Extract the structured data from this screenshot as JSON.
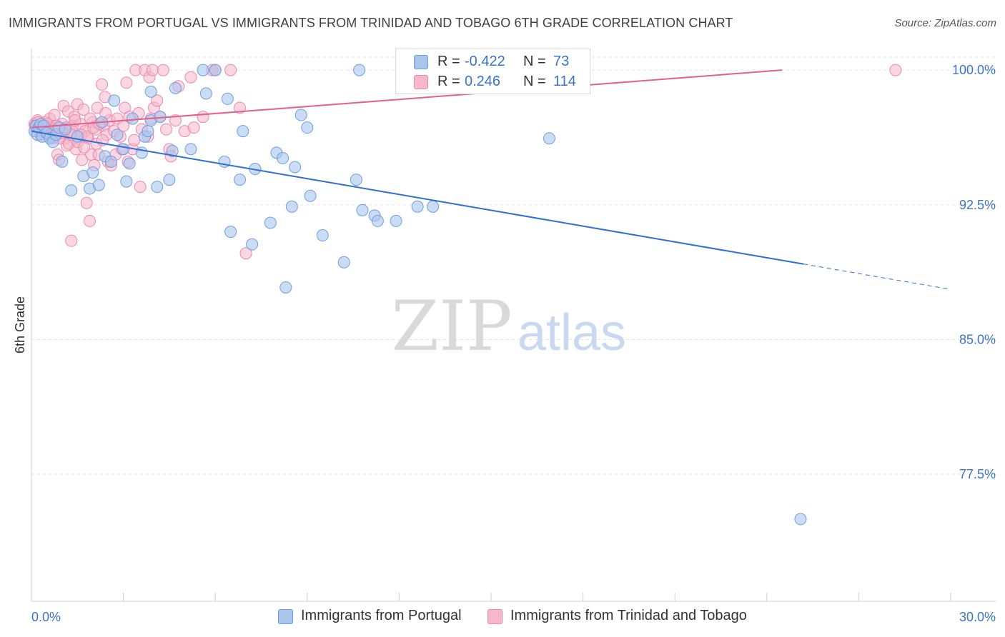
{
  "title": "IMMIGRANTS FROM PORTUGAL VS IMMIGRANTS FROM TRINIDAD AND TOBAGO 6TH GRADE CORRELATION CHART",
  "source": "Source: ZipAtlas.com",
  "watermark": {
    "zip": "ZIP",
    "atlas": "atlas"
  },
  "colors": {
    "blue_fill": "#a9c6ef",
    "blue_stroke": "#6f9de0",
    "blue_line": "#2f6fd1",
    "pink_fill": "#f6b6cb",
    "pink_stroke": "#e98aab",
    "pink_line": "#e2608b",
    "axis_label": "#3a74c9",
    "grid": "#e3e3e3"
  },
  "legend": {
    "rows": [
      {
        "r_label": "R =",
        "r_value": "-0.422",
        "n_label": "N =",
        "n_value": "73",
        "color": "blue"
      },
      {
        "r_label": "R =",
        "r_value": "0.246",
        "n_label": "N =",
        "n_value": "114",
        "color": "pink"
      }
    ]
  },
  "bottom_legend": [
    {
      "label": "Immigrants from Portugal",
      "color": "blue"
    },
    {
      "label": "Immigrants from Trinidad and Tobago",
      "color": "pink"
    }
  ],
  "chart_data": {
    "type": "scatter",
    "ylabel": "6th Grade",
    "xlim": [
      0,
      30
    ],
    "ylim": [
      70.9,
      101.2
    ],
    "x_tick_labels": [
      "0.0%",
      "30.0%"
    ],
    "y_ticks": [
      {
        "value": 100.0,
        "label": "100.0%"
      },
      {
        "value": 92.5,
        "label": "92.5%"
      },
      {
        "value": 85.0,
        "label": "85.0%"
      },
      {
        "value": 77.5,
        "label": "77.5%"
      }
    ],
    "grid": true,
    "series": [
      {
        "name": "Immigrants from Portugal",
        "color": "blue",
        "regression": {
          "x_start": 0,
          "y_start": 96.6,
          "x_end": 25.2,
          "y_end": 89.2,
          "dashed_until_x": 30.0
        },
        "points": [
          [
            0.1,
            96.6
          ],
          [
            0.15,
            96.9
          ],
          [
            0.2,
            96.4
          ],
          [
            0.25,
            96.8
          ],
          [
            0.3,
            97.0
          ],
          [
            0.35,
            96.3
          ],
          [
            0.4,
            96.9
          ],
          [
            0.5,
            96.5
          ],
          [
            0.6,
            96.2
          ],
          [
            0.7,
            96.0
          ],
          [
            0.8,
            96.4
          ],
          [
            0.9,
            96.8
          ],
          [
            1.0,
            94.9
          ],
          [
            1.1,
            96.7
          ],
          [
            1.3,
            93.3
          ],
          [
            1.5,
            96.3
          ],
          [
            1.7,
            94.1
          ],
          [
            1.9,
            93.4
          ],
          [
            2.0,
            94.3
          ],
          [
            2.2,
            93.6
          ],
          [
            2.3,
            97.1
          ],
          [
            2.4,
            95.2
          ],
          [
            2.6,
            94.9
          ],
          [
            2.8,
            96.4
          ],
          [
            2.7,
            98.3
          ],
          [
            3.0,
            95.6
          ],
          [
            3.1,
            93.8
          ],
          [
            3.2,
            94.8
          ],
          [
            3.3,
            97.3
          ],
          [
            3.6,
            95.4
          ],
          [
            3.7,
            96.3
          ],
          [
            3.8,
            96.6
          ],
          [
            3.9,
            97.2
          ],
          [
            3.9,
            98.8
          ],
          [
            4.1,
            93.5
          ],
          [
            4.2,
            97.4
          ],
          [
            4.6,
            95.5
          ],
          [
            4.5,
            93.9
          ],
          [
            4.7,
            99.0
          ],
          [
            5.2,
            95.6
          ],
          [
            5.7,
            98.7
          ],
          [
            5.6,
            100.0
          ],
          [
            6.0,
            100.0
          ],
          [
            6.3,
            94.9
          ],
          [
            6.4,
            98.4
          ],
          [
            6.8,
            93.9
          ],
          [
            6.9,
            96.6
          ],
          [
            6.5,
            91.0
          ],
          [
            7.2,
            90.3
          ],
          [
            7.3,
            94.5
          ],
          [
            7.8,
            91.5
          ],
          [
            8.0,
            95.4
          ],
          [
            8.2,
            95.1
          ],
          [
            8.3,
            87.9
          ],
          [
            8.5,
            92.4
          ],
          [
            8.6,
            94.6
          ],
          [
            8.8,
            97.5
          ],
          [
            9.0,
            96.8
          ],
          [
            9.1,
            93.0
          ],
          [
            9.5,
            90.8
          ],
          [
            10.2,
            89.3
          ],
          [
            10.6,
            93.9
          ],
          [
            10.8,
            92.2
          ],
          [
            11.2,
            91.9
          ],
          [
            11.3,
            91.6
          ],
          [
            11.9,
            91.6
          ],
          [
            12.6,
            92.4
          ],
          [
            13.1,
            92.4
          ],
          [
            13.2,
            100.0
          ],
          [
            13.4,
            100.0
          ],
          [
            16.8,
            100.0
          ],
          [
            16.9,
            96.2
          ],
          [
            10.7,
            100.0
          ],
          [
            25.1,
            75.0
          ]
        ]
      },
      {
        "name": "Immigrants from Trinidad and Tobago",
        "color": "pink",
        "regression": {
          "x_start": 0,
          "y_start": 96.8,
          "x_end": 24.5,
          "y_end": 100.0
        },
        "points": [
          [
            0.1,
            97.0
          ],
          [
            0.15,
            96.6
          ],
          [
            0.2,
            97.2
          ],
          [
            0.25,
            96.8
          ],
          [
            0.3,
            96.4
          ],
          [
            0.35,
            97.0
          ],
          [
            0.4,
            96.7
          ],
          [
            0.45,
            97.1
          ],
          [
            0.5,
            96.9
          ],
          [
            0.55,
            96.5
          ],
          [
            0.6,
            97.3
          ],
          [
            0.65,
            96.8
          ],
          [
            0.7,
            96.2
          ],
          [
            0.75,
            97.5
          ],
          [
            0.8,
            96.9
          ],
          [
            0.85,
            95.3
          ],
          [
            0.9,
            95.0
          ],
          [
            0.95,
            96.6
          ],
          [
            1.0,
            97.0
          ],
          [
            1.05,
            98.0
          ],
          [
            1.1,
            96.2
          ],
          [
            1.15,
            95.8
          ],
          [
            1.2,
            97.7
          ],
          [
            1.25,
            96.6
          ],
          [
            1.3,
            90.5
          ],
          [
            1.35,
            96.9
          ],
          [
            1.4,
            97.4
          ],
          [
            1.45,
            95.6
          ],
          [
            1.5,
            98.1
          ],
          [
            1.55,
            96.3
          ],
          [
            1.6,
            97.0
          ],
          [
            1.65,
            95.0
          ],
          [
            1.7,
            97.8
          ],
          [
            1.75,
            96.6
          ],
          [
            1.8,
            92.6
          ],
          [
            1.85,
            96.2
          ],
          [
            1.9,
            91.6
          ],
          [
            1.95,
            95.3
          ],
          [
            2.0,
            97.1
          ],
          [
            2.05,
            94.7
          ],
          [
            2.1,
            96.7
          ],
          [
            2.15,
            97.9
          ],
          [
            2.2,
            95.3
          ],
          [
            2.3,
            99.2
          ],
          [
            2.35,
            96.9
          ],
          [
            2.4,
            98.5
          ],
          [
            2.45,
            96.4
          ],
          [
            2.5,
            94.9
          ],
          [
            2.55,
            97.2
          ],
          [
            2.6,
            94.7
          ],
          [
            2.7,
            96.6
          ],
          [
            2.75,
            95.3
          ],
          [
            2.8,
            97.3
          ],
          [
            2.9,
            96.3
          ],
          [
            2.95,
            95.6
          ],
          [
            3.0,
            96.9
          ],
          [
            3.05,
            97.9
          ],
          [
            3.1,
            99.3
          ],
          [
            3.15,
            94.9
          ],
          [
            3.2,
            97.4
          ],
          [
            3.3,
            95.6
          ],
          [
            3.35,
            96.1
          ],
          [
            3.4,
            100.0
          ],
          [
            3.5,
            97.6
          ],
          [
            3.55,
            93.5
          ],
          [
            3.6,
            96.7
          ],
          [
            3.7,
            100.0
          ],
          [
            3.8,
            96.3
          ],
          [
            3.85,
            99.6
          ],
          [
            3.9,
            97.3
          ],
          [
            3.95,
            100.0
          ],
          [
            4.0,
            97.9
          ],
          [
            4.1,
            98.3
          ],
          [
            4.2,
            97.4
          ],
          [
            4.3,
            100.0
          ],
          [
            4.4,
            96.7
          ],
          [
            4.5,
            95.6
          ],
          [
            4.55,
            95.2
          ],
          [
            4.7,
            97.2
          ],
          [
            4.8,
            99.1
          ],
          [
            5.0,
            96.6
          ],
          [
            5.2,
            99.6
          ],
          [
            5.3,
            96.8
          ],
          [
            5.6,
            97.4
          ],
          [
            5.9,
            100.0
          ],
          [
            6.0,
            100.0
          ],
          [
            6.5,
            100.0
          ],
          [
            6.8,
            97.9
          ],
          [
            7.0,
            89.8
          ],
          [
            0.12,
            96.9
          ],
          [
            0.22,
            97.1
          ],
          [
            0.32,
            96.6
          ],
          [
            0.42,
            96.8
          ],
          [
            0.52,
            97.0
          ],
          [
            0.62,
            96.3
          ],
          [
            0.72,
            96.5
          ],
          [
            0.82,
            96.9
          ],
          [
            0.92,
            96.2
          ],
          [
            1.02,
            96.5
          ],
          [
            1.12,
            96.8
          ],
          [
            1.22,
            95.9
          ],
          [
            1.32,
            96.4
          ],
          [
            1.42,
            97.2
          ],
          [
            1.52,
            96.0
          ],
          [
            1.62,
            96.4
          ],
          [
            1.72,
            95.7
          ],
          [
            1.82,
            96.3
          ],
          [
            1.92,
            97.3
          ],
          [
            2.02,
            96.8
          ],
          [
            2.12,
            95.9
          ],
          [
            2.22,
            97.0
          ],
          [
            2.32,
            96.1
          ],
          [
            2.42,
            97.6
          ],
          [
            28.2,
            100.0
          ]
        ]
      }
    ]
  }
}
